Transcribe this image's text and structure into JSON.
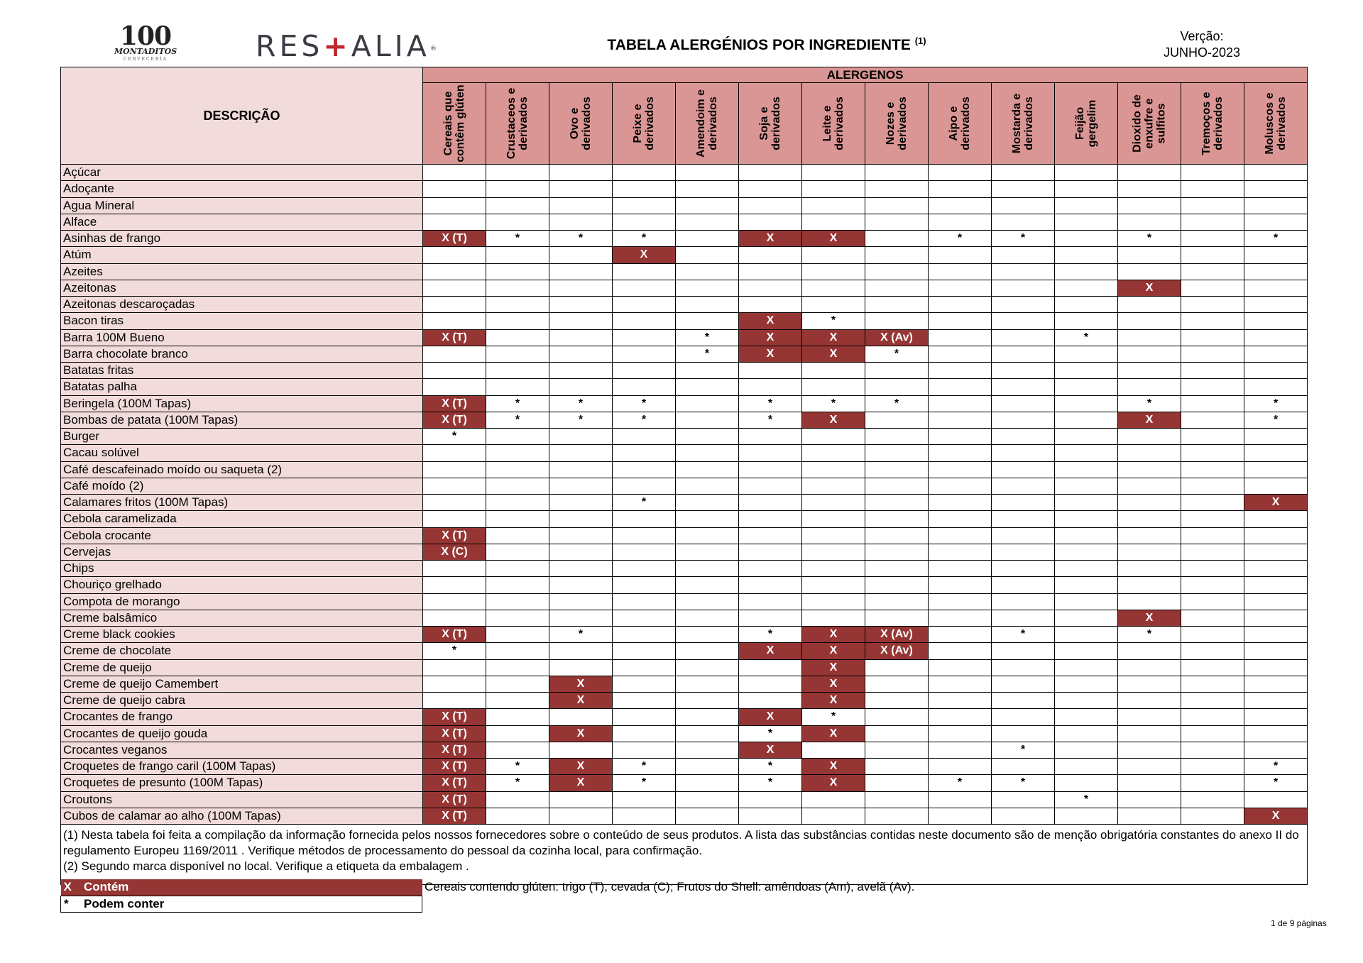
{
  "header": {
    "logo_100": {
      "num": "100",
      "word": "MONTADITOS",
      "sub": "CERVECERÍA"
    },
    "logo_restalia": {
      "left": "RES",
      "cross": "+",
      "right": "ALIA",
      "mark": "®"
    },
    "title": "TABELA ALERGÉNIOS POR INGREDIENTE",
    "title_note": "(1)",
    "version_label": "Verção:",
    "version_value": "JUNHO-2023"
  },
  "table": {
    "desc_header": "DESCRIÇÃO",
    "group_header": "ALERGENOS",
    "columns": [
      "Cereais que contêm glúten",
      "Crustaceos e derivados",
      "Ovo e derivados",
      "Peixe e derivados",
      "Amendoim e derivados",
      "Soja e derivados",
      "Leite e derivados",
      "Nozes e derivados",
      "Aipo e derivados",
      "Mostarda e derivados",
      "Feijão gergelim",
      "Dioxido de enxufre e sulfitos",
      "Tremoços e derivados",
      "Moluscos e derivados"
    ],
    "rows": [
      {
        "name": "Açúcar",
        "cells": [
          "",
          "",
          "",
          "",
          "",
          "",
          "",
          "",
          "",
          "",
          "",
          "",
          "",
          ""
        ]
      },
      {
        "name": "Adoçante",
        "cells": [
          "",
          "",
          "",
          "",
          "",
          "",
          "",
          "",
          "",
          "",
          "",
          "",
          "",
          ""
        ]
      },
      {
        "name": "Agua Mineral",
        "cells": [
          "",
          "",
          "",
          "",
          "",
          "",
          "",
          "",
          "",
          "",
          "",
          "",
          "",
          ""
        ]
      },
      {
        "name": "Alface",
        "cells": [
          "",
          "",
          "",
          "",
          "",
          "",
          "",
          "",
          "",
          "",
          "",
          "",
          "",
          ""
        ]
      },
      {
        "name": "Asinhas de frango",
        "cells": [
          "X (T)",
          "*",
          "*",
          "*",
          "",
          "X",
          "X",
          "",
          "*",
          "*",
          "",
          "*",
          "",
          "*"
        ]
      },
      {
        "name": "Atúm",
        "cells": [
          "",
          "",
          "",
          "X",
          "",
          "",
          "",
          "",
          "",
          "",
          "",
          "",
          "",
          ""
        ]
      },
      {
        "name": "Azeites",
        "cells": [
          "",
          "",
          "",
          "",
          "",
          "",
          "",
          "",
          "",
          "",
          "",
          "",
          "",
          ""
        ]
      },
      {
        "name": "Azeitonas",
        "cells": [
          "",
          "",
          "",
          "",
          "",
          "",
          "",
          "",
          "",
          "",
          "",
          "X",
          "",
          ""
        ]
      },
      {
        "name": "Azeitonas descaroçadas",
        "cells": [
          "",
          "",
          "",
          "",
          "",
          "",
          "",
          "",
          "",
          "",
          "",
          "",
          "",
          ""
        ]
      },
      {
        "name": "Bacon tiras",
        "cells": [
          "",
          "",
          "",
          "",
          "",
          "X",
          "*",
          "",
          "",
          "",
          "",
          "",
          "",
          ""
        ]
      },
      {
        "name": "Barra 100M Bueno",
        "cells": [
          "X (T)",
          "",
          "",
          "",
          "*",
          "X",
          "X",
          "X (Av)",
          "",
          "",
          "*",
          "",
          "",
          ""
        ]
      },
      {
        "name": "Barra chocolate branco",
        "cells": [
          "",
          "",
          "",
          "",
          "*",
          "X",
          "X",
          "*",
          "",
          "",
          "",
          "",
          "",
          ""
        ]
      },
      {
        "name": "Batatas fritas",
        "cells": [
          "",
          "",
          "",
          "",
          "",
          "",
          "",
          "",
          "",
          "",
          "",
          "",
          "",
          ""
        ]
      },
      {
        "name": "Batatas palha",
        "cells": [
          "",
          "",
          "",
          "",
          "",
          "",
          "",
          "",
          "",
          "",
          "",
          "",
          "",
          ""
        ]
      },
      {
        "name": "Beringela (100M Tapas)",
        "cells": [
          "X (T)",
          "*",
          "*",
          "*",
          "",
          "*",
          "*",
          "*",
          "",
          "",
          "",
          "*",
          "",
          "*"
        ]
      },
      {
        "name": "Bombas de patata (100M Tapas)",
        "cells": [
          "X (T)",
          "*",
          "*",
          "*",
          "",
          "*",
          "X",
          "",
          "",
          "",
          "",
          "X",
          "",
          "*"
        ]
      },
      {
        "name": "Burger",
        "cells": [
          "*",
          "",
          "",
          "",
          "",
          "",
          "",
          "",
          "",
          "",
          "",
          "",
          "",
          ""
        ]
      },
      {
        "name": "Cacau solúvel",
        "cells": [
          "",
          "",
          "",
          "",
          "",
          "",
          "",
          "",
          "",
          "",
          "",
          "",
          "",
          ""
        ]
      },
      {
        "name": "Café descafeinado moído ou saqueta (2)",
        "cells": [
          "",
          "",
          "",
          "",
          "",
          "",
          "",
          "",
          "",
          "",
          "",
          "",
          "",
          ""
        ]
      },
      {
        "name": "Café moído (2)",
        "cells": [
          "",
          "",
          "",
          "",
          "",
          "",
          "",
          "",
          "",
          "",
          "",
          "",
          "",
          ""
        ]
      },
      {
        "name": "Calamares fritos (100M Tapas)",
        "cells": [
          "",
          "",
          "",
          "*",
          "",
          "",
          "",
          "",
          "",
          "",
          "",
          "",
          "",
          "X"
        ]
      },
      {
        "name": "Cebola caramelizada",
        "cells": [
          "",
          "",
          "",
          "",
          "",
          "",
          "",
          "",
          "",
          "",
          "",
          "",
          "",
          ""
        ]
      },
      {
        "name": "Cebola crocante",
        "cells": [
          "X (T)",
          "",
          "",
          "",
          "",
          "",
          "",
          "",
          "",
          "",
          "",
          "",
          "",
          ""
        ]
      },
      {
        "name": "Cervejas",
        "cells": [
          "X (C)",
          "",
          "",
          "",
          "",
          "",
          "",
          "",
          "",
          "",
          "",
          "",
          "",
          ""
        ]
      },
      {
        "name": "Chips",
        "cells": [
          "",
          "",
          "",
          "",
          "",
          "",
          "",
          "",
          "",
          "",
          "",
          "",
          "",
          ""
        ]
      },
      {
        "name": "Chouriço grelhado",
        "cells": [
          "",
          "",
          "",
          "",
          "",
          "",
          "",
          "",
          "",
          "",
          "",
          "",
          "",
          ""
        ]
      },
      {
        "name": "Compota de morango",
        "cells": [
          "",
          "",
          "",
          "",
          "",
          "",
          "",
          "",
          "",
          "",
          "",
          "",
          "",
          ""
        ]
      },
      {
        "name": "Creme balsâmico",
        "cells": [
          "",
          "",
          "",
          "",
          "",
          "",
          "",
          "",
          "",
          "",
          "",
          "X",
          "",
          ""
        ]
      },
      {
        "name": "Creme black cookies",
        "cells": [
          "X (T)",
          "",
          "*",
          "",
          "",
          "*",
          "X",
          "X (Av)",
          "",
          "*",
          "",
          "*",
          "",
          ""
        ]
      },
      {
        "name": "Creme de chocolate",
        "cells": [
          "*",
          "",
          "",
          "",
          "",
          "X",
          "X",
          "X (Av)",
          "",
          "",
          "",
          "",
          "",
          ""
        ]
      },
      {
        "name": "Creme de queijo",
        "cells": [
          "",
          "",
          "",
          "",
          "",
          "",
          "X",
          "",
          "",
          "",
          "",
          "",
          "",
          ""
        ]
      },
      {
        "name": "Creme de queijo Camembert",
        "cells": [
          "",
          "",
          "X",
          "",
          "",
          "",
          "X",
          "",
          "",
          "",
          "",
          "",
          "",
          ""
        ]
      },
      {
        "name": "Creme de queijo cabra",
        "cells": [
          "",
          "",
          "X",
          "",
          "",
          "",
          "X",
          "",
          "",
          "",
          "",
          "",
          "",
          ""
        ]
      },
      {
        "name": "Crocantes de frango",
        "cells": [
          "X (T)",
          "",
          "",
          "",
          "",
          "X",
          "*",
          "",
          "",
          "",
          "",
          "",
          "",
          ""
        ]
      },
      {
        "name": "Crocantes de queijo gouda",
        "cells": [
          "X (T)",
          "",
          "X",
          "",
          "",
          "*",
          "X",
          "",
          "",
          "",
          "",
          "",
          "",
          ""
        ]
      },
      {
        "name": "Crocantes veganos",
        "cells": [
          "X (T)",
          "",
          "",
          "",
          "",
          "X",
          "",
          "",
          "",
          "*",
          "",
          "",
          "",
          ""
        ]
      },
      {
        "name": "Croquetes de frango caril (100M Tapas)",
        "cells": [
          "X (T)",
          "*",
          "X",
          "*",
          "",
          "*",
          "X",
          "",
          "",
          "",
          "",
          "",
          "",
          "*"
        ]
      },
      {
        "name": "Croquetes de presunto (100M Tapas)",
        "cells": [
          "X (T)",
          "*",
          "X",
          "*",
          "",
          "*",
          "X",
          "",
          "*",
          "*",
          "",
          "",
          "",
          "*"
        ]
      },
      {
        "name": "Croutons",
        "cells": [
          "X (T)",
          "",
          "",
          "",
          "",
          "",
          "",
          "",
          "",
          "",
          "*",
          "",
          "",
          ""
        ]
      },
      {
        "name": "Cubos de calamar ao alho (100M Tapas)",
        "cells": [
          "X (T)",
          "",
          "",
          "",
          "",
          "",
          "",
          "",
          "",
          "",
          "",
          "",
          "",
          "X"
        ]
      }
    ],
    "footnote_1": "(1) Nesta tabela foi feita a compilação da informação fornecida pelos nossos fornecedores sobre o conteúdo de seus produtos. A lista das substâncias contidas neste documento são de menção obrigatória constantes do anexo II do regulamento Europeu 1169/2011 . Verifique métodos de processamento do pessoal da cozinha local, para confirmação.",
    "footnote_2": "(2) Segundo marca disponível no local. Verifique a etiqueta da embalagem ."
  },
  "legend": {
    "contains_symbol": "X",
    "contains_label": "Contém",
    "may_symbol": "*",
    "may_label": "Podem conter",
    "note": "Cereais contendo glúten: trigo (T), cevada (C); Frutos do Shell: amêndoas (Am), avelã (Av)."
  },
  "page": "1 de 9 páginas",
  "colors": {
    "header_pink": "#f2dcdb",
    "header_rose": "#da9694",
    "contains_red": "#963634"
  }
}
